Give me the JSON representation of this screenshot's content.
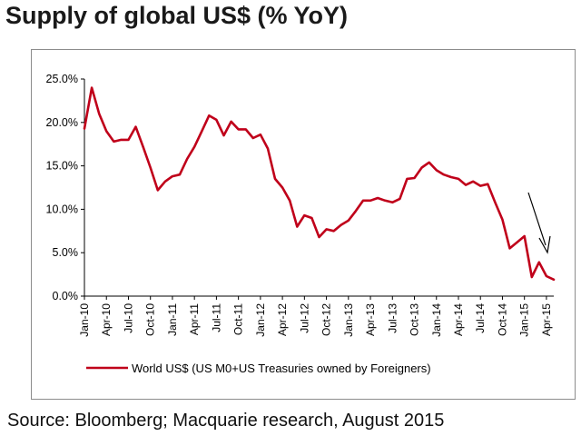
{
  "title": "Supply of global US$ (% YoY)",
  "source": "Source: Bloomberg; Macquarie research, August 2015",
  "colors": {
    "line": "#c0001a",
    "axis": "#000000",
    "frame": "#8c8c8c",
    "arrow": "#000000"
  },
  "chart_data": {
    "type": "line",
    "title": "",
    "xlabel": "",
    "ylabel": "",
    "ylim": [
      0,
      25
    ],
    "yticks": [
      0,
      5,
      10,
      15,
      20,
      25
    ],
    "ytick_labels": [
      "0.0%",
      "5.0%",
      "10.0%",
      "15.0%",
      "20.0%",
      "25.0%"
    ],
    "xtick_labels": [
      "Jan-10",
      "Apr-10",
      "Jul-10",
      "Oct-10",
      "Jan-11",
      "Apr-11",
      "Jul-11",
      "Oct-11",
      "Jan-12",
      "Apr-12",
      "Jul-12",
      "Oct-12",
      "Jan-13",
      "Apr-13",
      "Jul-13",
      "Oct-13",
      "Jan-14",
      "Apr-14",
      "Jul-14",
      "Oct-14",
      "Jan-15",
      "Apr-15"
    ],
    "grid": false,
    "legend_position": "bottom",
    "annotation": "arrow pointing down toward Apr-15",
    "series": [
      {
        "name": "World US$ (US M0+US Treasuries owned by Foreigners)",
        "x": [
          "Jan-10",
          "Feb-10",
          "Mar-10",
          "Apr-10",
          "May-10",
          "Jun-10",
          "Jul-10",
          "Aug-10",
          "Sep-10",
          "Oct-10",
          "Nov-10",
          "Dec-10",
          "Jan-11",
          "Feb-11",
          "Mar-11",
          "Apr-11",
          "May-11",
          "Jun-11",
          "Jul-11",
          "Aug-11",
          "Sep-11",
          "Oct-11",
          "Nov-11",
          "Dec-11",
          "Jan-12",
          "Feb-12",
          "Mar-12",
          "Apr-12",
          "May-12",
          "Jun-12",
          "Jul-12",
          "Aug-12",
          "Sep-12",
          "Oct-12",
          "Nov-12",
          "Dec-12",
          "Jan-13",
          "Feb-13",
          "Mar-13",
          "Apr-13",
          "May-13",
          "Jun-13",
          "Jul-13",
          "Aug-13",
          "Sep-13",
          "Oct-13",
          "Nov-13",
          "Dec-13",
          "Jan-14",
          "Feb-14",
          "Mar-14",
          "Apr-14",
          "May-14",
          "Jun-14",
          "Jul-14",
          "Aug-14",
          "Sep-14",
          "Oct-14",
          "Nov-14",
          "Dec-14",
          "Jan-15",
          "Feb-15",
          "Mar-15",
          "Apr-15",
          "May-15"
        ],
        "values": [
          19.3,
          24.0,
          21.0,
          19.0,
          17.8,
          18.0,
          18.0,
          19.5,
          17.2,
          14.8,
          12.2,
          13.2,
          13.8,
          14.0,
          15.8,
          17.2,
          19.0,
          20.8,
          20.3,
          18.5,
          20.1,
          19.2,
          19.2,
          18.2,
          18.6,
          17.0,
          13.5,
          12.5,
          11.0,
          8.0,
          9.3,
          9.0,
          6.8,
          7.7,
          7.5,
          8.2,
          8.7,
          9.8,
          11.0,
          11.0,
          11.3,
          11.0,
          10.8,
          11.2,
          13.5,
          13.6,
          14.8,
          15.4,
          14.5,
          14.0,
          13.7,
          13.5,
          12.8,
          13.2,
          12.7,
          12.9,
          10.8,
          8.8,
          5.5,
          6.2,
          6.9,
          2.2,
          3.9,
          2.3,
          1.9
        ]
      }
    ]
  }
}
